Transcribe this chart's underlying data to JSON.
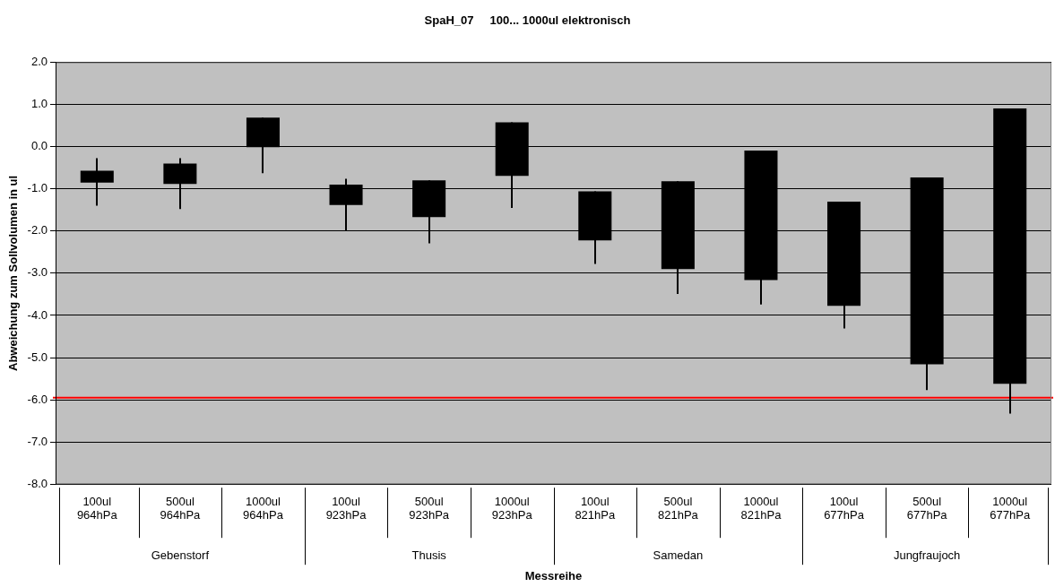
{
  "chart_data": {
    "type": "candlestick",
    "title": "SpaH_07     100... 1000ul elektronisch",
    "xlabel": "Messreihe",
    "ylabel": "Abweichung zum Sollvolumen in ul",
    "categories": [
      "100ul\n964hPa",
      "500ul\n964hPa",
      "1000ul\n964hPa",
      "100ul\n923hPa",
      "500ul\n923hPa",
      "1000ul\n923hPa",
      "100ul\n821hPa",
      "500ul\n821hPa",
      "1000ul\n821hPa",
      "100ul\n677hPa",
      "500ul\n677hPa",
      "1000ul\n677hPa"
    ],
    "annotations": [
      "Gebenstorf",
      "Thusis",
      "Samedan",
      "Jungfraujoch"
    ],
    "ohlc": [
      [
        -0.57,
        -0.27,
        -1.4,
        -0.85
      ],
      [
        -0.4,
        -0.27,
        -1.48,
        -0.88
      ],
      [
        0.69,
        0.69,
        -0.63,
        -0.01
      ],
      [
        -0.9,
        -0.76,
        -1.99,
        -1.38
      ],
      [
        -0.8,
        -0.8,
        -2.29,
        -1.67
      ],
      [
        0.58,
        0.58,
        -1.45,
        -0.69
      ],
      [
        -1.06,
        -1.06,
        -2.78,
        -2.22
      ],
      [
        -0.82,
        -0.82,
        -3.49,
        -2.9
      ],
      [
        -0.09,
        -0.09,
        -3.74,
        -3.16
      ],
      [
        -1.3,
        -1.3,
        -4.31,
        -3.77
      ],
      [
        -0.73,
        -0.73,
        -5.77,
        -5.16
      ],
      [
        0.91,
        0.91,
        -6.33,
        -5.62
      ]
    ],
    "color": "#000000",
    "ylim": [
      -8,
      2
    ],
    "yticks": [
      {
        "value": -8,
        "label": "-8.0"
      },
      {
        "value": -7,
        "label": "-7.0"
      },
      {
        "value": -6,
        "label": "-6.0"
      },
      {
        "value": -5,
        "label": "-5.0"
      },
      {
        "value": -4,
        "label": "-4.0"
      },
      {
        "value": -3,
        "label": "-3.0"
      },
      {
        "value": -2,
        "label": "-2.0"
      },
      {
        "value": -1,
        "label": "-1.0"
      },
      {
        "value": 0,
        "label": "0.0"
      },
      {
        "value": 1,
        "label": "1.0"
      },
      {
        "value": 2,
        "label": "2.0"
      }
    ],
    "ref_lines": [
      {
        "axis": "y",
        "value": -5.95,
        "color": "#ff0000"
      }
    ],
    "grid": "y",
    "legend": false
  }
}
